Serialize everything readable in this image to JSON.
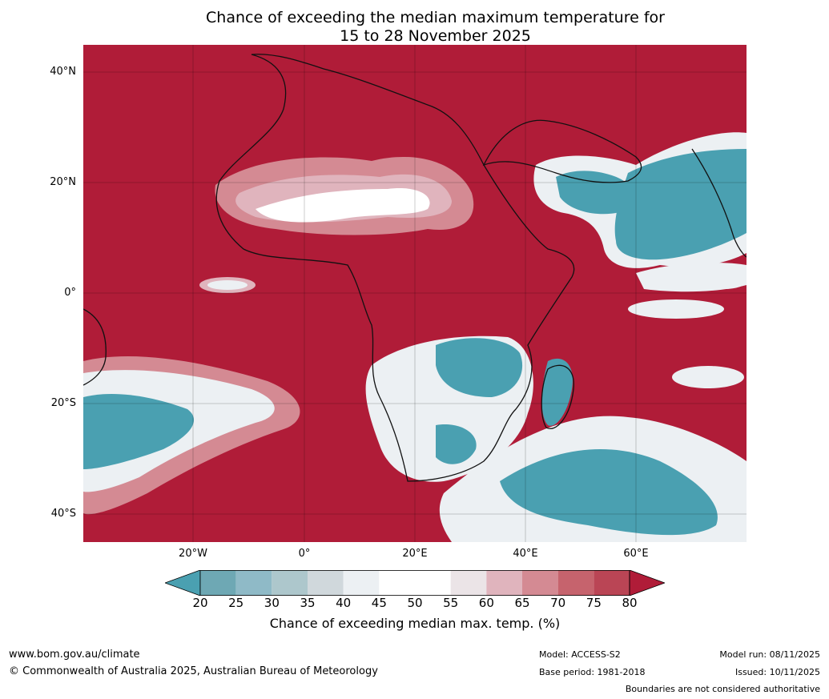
{
  "title": {
    "line1": "Chance of exceeding the median maximum temperature for",
    "line2": "15 to 28 November 2025"
  },
  "axes": {
    "lat_labels": [
      "40°N",
      "20°N",
      "0°",
      "20°S",
      "40°S"
    ],
    "lon_labels": [
      "20°W",
      "0°",
      "20°E",
      "40°E",
      "60°E"
    ]
  },
  "colorbar": {
    "label": "Chance of exceeding median max. temp. (%)",
    "ticks": [
      "20",
      "25",
      "30",
      "35",
      "40",
      "45",
      "50",
      "55",
      "60",
      "65",
      "70",
      "75",
      "80"
    ],
    "colors": [
      "#4aa0b1",
      "#6ea8b4",
      "#8fbac7",
      "#adc7cc",
      "#d0d8dc",
      "#ecf0f3",
      "#ffffff",
      "#ffffff",
      "#ebe4e7",
      "#e0b4bd",
      "#d48a93",
      "#c6636d",
      "#ba4555",
      "#b01c38"
    ]
  },
  "map_colors": {
    "above": "#b01c38",
    "neutral": "#ffffff",
    "below": "#4aa0b1",
    "coast": "#111111",
    "border": "#808080"
  },
  "footer": {
    "url": "www.bom.gov.au/climate",
    "copyright": "© Commonwealth of Australia 2025, Australian Bureau of Meteorology",
    "model": "Model: ACCESS-S2",
    "base_period": "Base period: 1981-2018",
    "model_run": "Model run: 08/11/2025",
    "issued": "Issued: 10/11/2025",
    "disclaimer": "Boundaries are not considered authoritative"
  }
}
